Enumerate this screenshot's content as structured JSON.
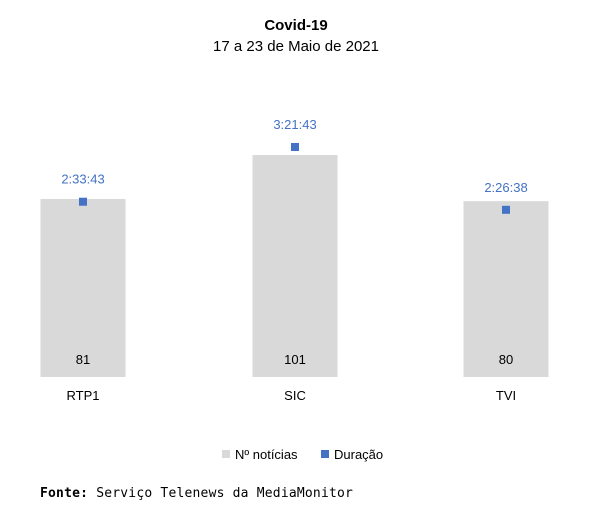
{
  "chart_data": {
    "type": "bar",
    "title": "Covid-19",
    "subtitle": "17 a 23 de Maio de 2021",
    "categories": [
      "RTP1",
      "SIC",
      "TVI"
    ],
    "series": [
      {
        "name": "Nº notícias",
        "type": "bar",
        "values": [
          81,
          101,
          80
        ],
        "color": "#d9d9d9"
      },
      {
        "name": "Duração",
        "type": "marker",
        "values": [
          "2:33:43",
          "3:21:43",
          "2:26:38"
        ],
        "seconds": [
          9223,
          12103,
          8798
        ],
        "color": "#4472c4"
      }
    ],
    "grid": false,
    "legend": "bottom"
  },
  "source": {
    "label": "Fonte:",
    "text": "Serviço Telenews da MediaMonitor"
  }
}
